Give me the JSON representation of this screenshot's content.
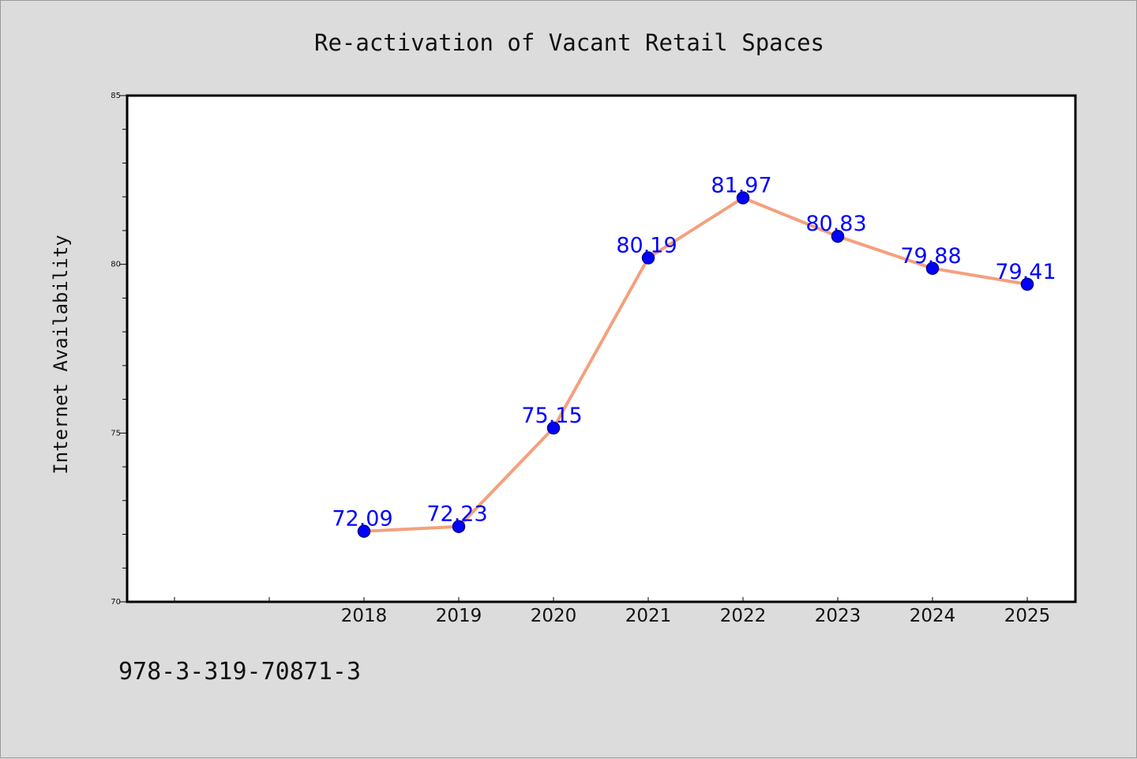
{
  "chart_data": {
    "type": "line",
    "title": "Re-activation of Vacant Retail Spaces",
    "xlabel": "",
    "ylabel": "Internet Availability",
    "categories": [
      "2018",
      "2019",
      "2020",
      "2021",
      "2022",
      "2023",
      "2024",
      "2025"
    ],
    "series": [
      {
        "values": [
          72.09,
          72.23,
          75.15,
          80.19,
          81.97,
          80.83,
          79.88,
          79.41
        ]
      }
    ],
    "data_labels": [
      "72.09",
      "72.23",
      "75.15",
      "80.19",
      "81.97",
      "80.83",
      "79.88",
      "79.41"
    ],
    "ylim": [
      70,
      85
    ],
    "y_ticks": [
      "70",
      "75",
      "80",
      "85"
    ],
    "grid": false,
    "colors": {
      "line": "#f4a07e",
      "marker": "#0000ff",
      "marker_edge": "#000080",
      "data_label": "#0000ff",
      "plot_background": "#ffffff",
      "figure_background": "#dcdcdc"
    }
  },
  "footer": {
    "isbn": "978-3-319-70871-3"
  }
}
